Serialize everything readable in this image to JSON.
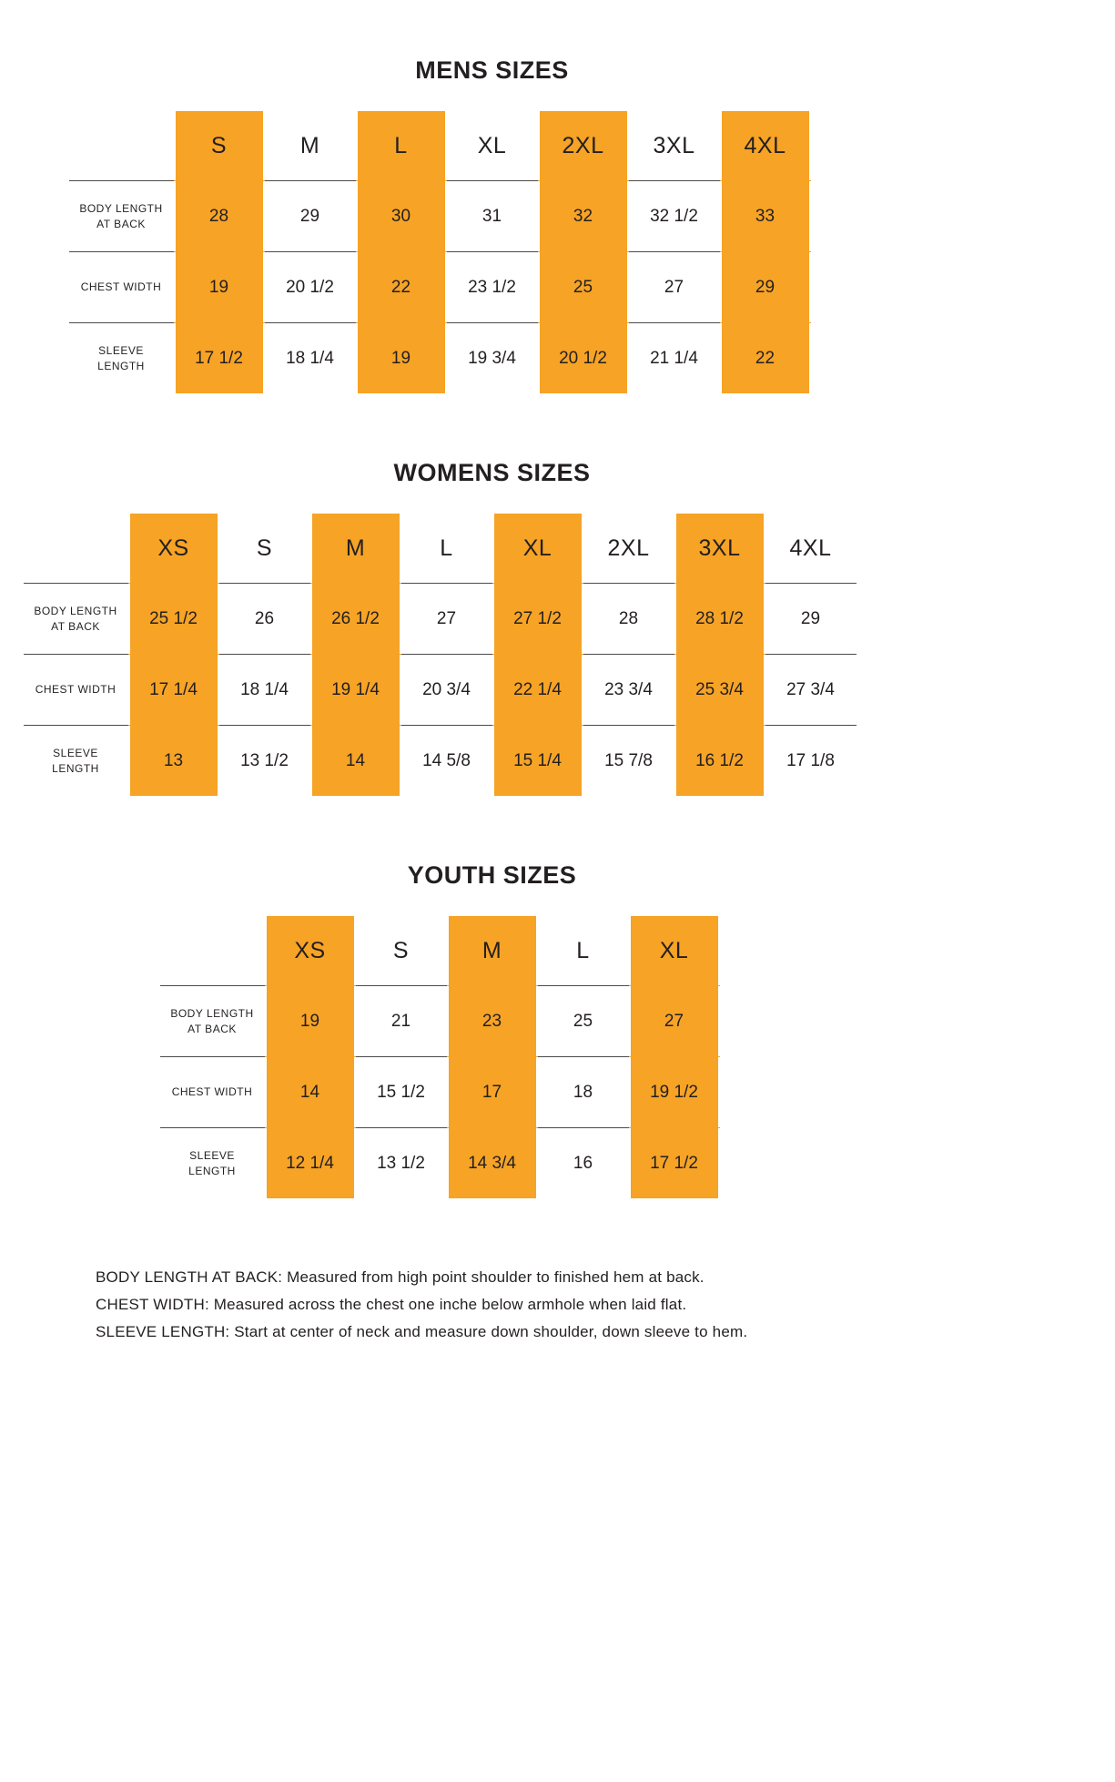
{
  "highlight_color": "#F6A326",
  "line_color": "#4b4b4d",
  "tables": [
    {
      "title": "MENS SIZES",
      "sizes": [
        "S",
        "M",
        "L",
        "XL",
        "2XL",
        "3XL",
        "4XL"
      ],
      "highlighted_columns": [
        0,
        2,
        4,
        6
      ],
      "rows": [
        {
          "label": "BODY LENGTH AT BACK",
          "values": [
            "28",
            "29",
            "30",
            "31",
            "32",
            "32 1/2",
            "33"
          ]
        },
        {
          "label": "CHEST WIDTH",
          "values": [
            "19",
            "20 1/2",
            "22",
            "23 1/2",
            "25",
            "27",
            "29"
          ]
        },
        {
          "label": "SLEEVE LENGTH",
          "values": [
            "17 1/2",
            "18 1/4",
            "19",
            "19 3/4",
            "20 1/2",
            "21 1/4",
            "22"
          ]
        }
      ]
    },
    {
      "title": "WOMENS SIZES",
      "sizes": [
        "XS",
        "S",
        "M",
        "L",
        "XL",
        "2XL",
        "3XL",
        "4XL"
      ],
      "highlighted_columns": [
        0,
        2,
        4,
        6
      ],
      "rows": [
        {
          "label": "BODY LENGTH AT BACK",
          "values": [
            "25 1/2",
            "26",
            "26 1/2",
            "27",
            "27 1/2",
            "28",
            "28 1/2",
            "29"
          ]
        },
        {
          "label": "CHEST WIDTH",
          "values": [
            "17 1/4",
            "18 1/4",
            "19 1/4",
            "20 3/4",
            "22 1/4",
            "23 3/4",
            "25 3/4",
            "27 3/4"
          ]
        },
        {
          "label": "SLEEVE LENGTH",
          "values": [
            "13",
            "13 1/2",
            "14",
            "14 5/8",
            "15 1/4",
            "15 7/8",
            "16 1/2",
            "17 1/8"
          ]
        }
      ]
    },
    {
      "title": "YOUTH SIZES",
      "sizes": [
        "XS",
        "S",
        "M",
        "L",
        "XL"
      ],
      "highlighted_columns": [
        0,
        2,
        4
      ],
      "rows": [
        {
          "label": "BODY LENGTH AT BACK",
          "values": [
            "19",
            "21",
            "23",
            "25",
            "27"
          ]
        },
        {
          "label": "CHEST WIDTH",
          "values": [
            "14",
            "15 1/2",
            "17",
            "18",
            "19 1/2"
          ]
        },
        {
          "label": "SLEEVE LENGTH",
          "values": [
            "12 1/4",
            "13 1/2",
            "14 3/4",
            "16",
            "17 1/2"
          ]
        }
      ]
    }
  ],
  "footnotes": [
    "BODY LENGTH AT BACK: Measured from high point shoulder to finished hem at back.",
    "CHEST WIDTH: Measured across the chest one inche below armhole when laid flat.",
    "SLEEVE LENGTH: Start at center of neck and measure down shoulder, down sleeve to hem."
  ]
}
